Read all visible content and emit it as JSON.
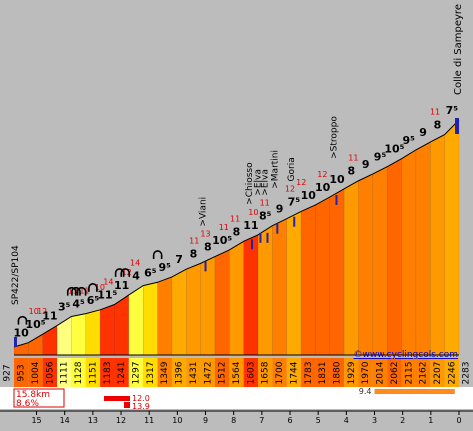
{
  "chart_data": {
    "type": "area",
    "title": "Colle di Sampeyre",
    "start_label": "SP422/SP104",
    "website": "©www.cyclingcols.com",
    "start_altitude": 927,
    "end_altitude": 2283,
    "distance_km": [
      15,
      14,
      13,
      12,
      11,
      10,
      9,
      8,
      7,
      6,
      5,
      4,
      3,
      2,
      1,
      0
    ],
    "segments": [
      {
        "alt": 953,
        "grade": 10,
        "label": "10"
      },
      {
        "alt": 1004,
        "grade": 10,
        "label": "10⁵"
      },
      {
        "alt": 1056,
        "grade": 11,
        "label": "11"
      },
      {
        "alt": 1111,
        "grade": 3,
        "label": "3⁵"
      },
      {
        "alt": 1128,
        "grade": 4,
        "label": "4⁵"
      },
      {
        "alt": 1151,
        "grade": 6,
        "label": "6⁵"
      },
      {
        "alt": 1183,
        "grade": 11,
        "label": "11⁵"
      },
      {
        "alt": 1241,
        "grade": 11,
        "label": "11"
      },
      {
        "alt": 1297,
        "grade": 4,
        "label": "4"
      },
      {
        "alt": 1317,
        "grade": 6,
        "label": "6⁵"
      },
      {
        "alt": 1349,
        "grade": 9,
        "label": "9⁵"
      },
      {
        "alt": 1396,
        "grade": 7,
        "label": "7"
      },
      {
        "alt": 1431,
        "grade": 8,
        "label": "8"
      },
      {
        "alt": 1472,
        "grade": 8,
        "label": "8"
      },
      {
        "alt": 1512,
        "grade": 10,
        "label": "10⁵"
      },
      {
        "alt": 1564,
        "grade": 8,
        "label": "8"
      },
      {
        "alt": 1603,
        "grade": 11,
        "label": "11"
      },
      {
        "alt": 1658,
        "grade": 8,
        "label": "8⁵"
      },
      {
        "alt": 1700,
        "grade": 9,
        "label": "9"
      },
      {
        "alt": 1744,
        "grade": 7,
        "label": "7⁵"
      },
      {
        "alt": 1783,
        "grade": 10,
        "label": "10"
      },
      {
        "alt": 1831,
        "grade": 10,
        "label": "10"
      },
      {
        "alt": 1880,
        "grade": 10,
        "label": "10"
      },
      {
        "alt": 1929,
        "grade": 8,
        "label": "8"
      },
      {
        "alt": 1970,
        "grade": 9,
        "label": "9"
      },
      {
        "alt": 2014,
        "grade": 9,
        "label": "9⁵"
      },
      {
        "alt": 2062,
        "grade": 10,
        "label": "10⁵"
      },
      {
        "alt": 2115,
        "grade": 9,
        "label": "9⁵"
      },
      {
        "alt": 2162,
        "grade": 9,
        "label": "9"
      },
      {
        "alt": 2207,
        "grade": 8,
        "label": "8"
      },
      {
        "alt": 2246,
        "grade": 7,
        "label": "7⁵"
      }
    ],
    "peak_grades": [
      {
        "km": 15.1,
        "value": "10"
      },
      {
        "km": 14.8,
        "value": "12"
      },
      {
        "km": 13.7,
        "value": "13"
      },
      {
        "km": 13.3,
        "value": "11"
      },
      {
        "km": 12.75,
        "value": "10"
      },
      {
        "km": 12.45,
        "value": "14"
      },
      {
        "km": 11.8,
        "value": "12"
      },
      {
        "km": 11.5,
        "value": "14"
      },
      {
        "km": 9.4,
        "value": "11"
      },
      {
        "km": 9.0,
        "value": "13"
      },
      {
        "km": 8.35,
        "value": "11"
      },
      {
        "km": 7.95,
        "value": "11"
      },
      {
        "km": 7.3,
        "value": "10"
      },
      {
        "km": 6.9,
        "value": "11"
      },
      {
        "km": 6.0,
        "value": "12"
      },
      {
        "km": 5.6,
        "value": "12"
      },
      {
        "km": 4.85,
        "value": "12"
      },
      {
        "km": 3.75,
        "value": "11"
      },
      {
        "km": 0.85,
        "value": "11"
      }
    ],
    "places": [
      {
        "name": ">Viani",
        "km": 9.0
      },
      {
        "name": ">Chiosso",
        "km": 7.35
      },
      {
        "name": ">Elva",
        "km": 7.05
      },
      {
        "name": ">Elva",
        "km": 6.8
      },
      {
        "name": ">Martini",
        "km": 6.45
      },
      {
        "name": "Goria",
        "km": 5.85
      },
      {
        "name": ">Stroppo",
        "km": 4.35
      }
    ],
    "hairpins_km": [
      15.5,
      13.75,
      13.6,
      13.4,
      13.0,
      12.05,
      11.85,
      10.7
    ],
    "stats_box": {
      "distance": "15.8km",
      "avg_grade": "8.6%"
    },
    "max_bars": [
      {
        "value": "12.0"
      },
      {
        "value": "13.9"
      }
    ],
    "steepest_km": {
      "value": "9.4",
      "from_km": 3.0,
      "to_km": 0.15
    },
    "axes": {
      "x_range": [
        15.8,
        0
      ],
      "y_range": [
        900,
        2300
      ]
    },
    "grade_colors": {
      "3": "#ffff80",
      "4": "#ffff40",
      "6": "#ffdd00",
      "7": "#ffaa00",
      "8": "#ff9900",
      "9": "#ff8000",
      "10": "#ff6600",
      "11": "#ff3300",
      "12": "#ff2200"
    }
  }
}
